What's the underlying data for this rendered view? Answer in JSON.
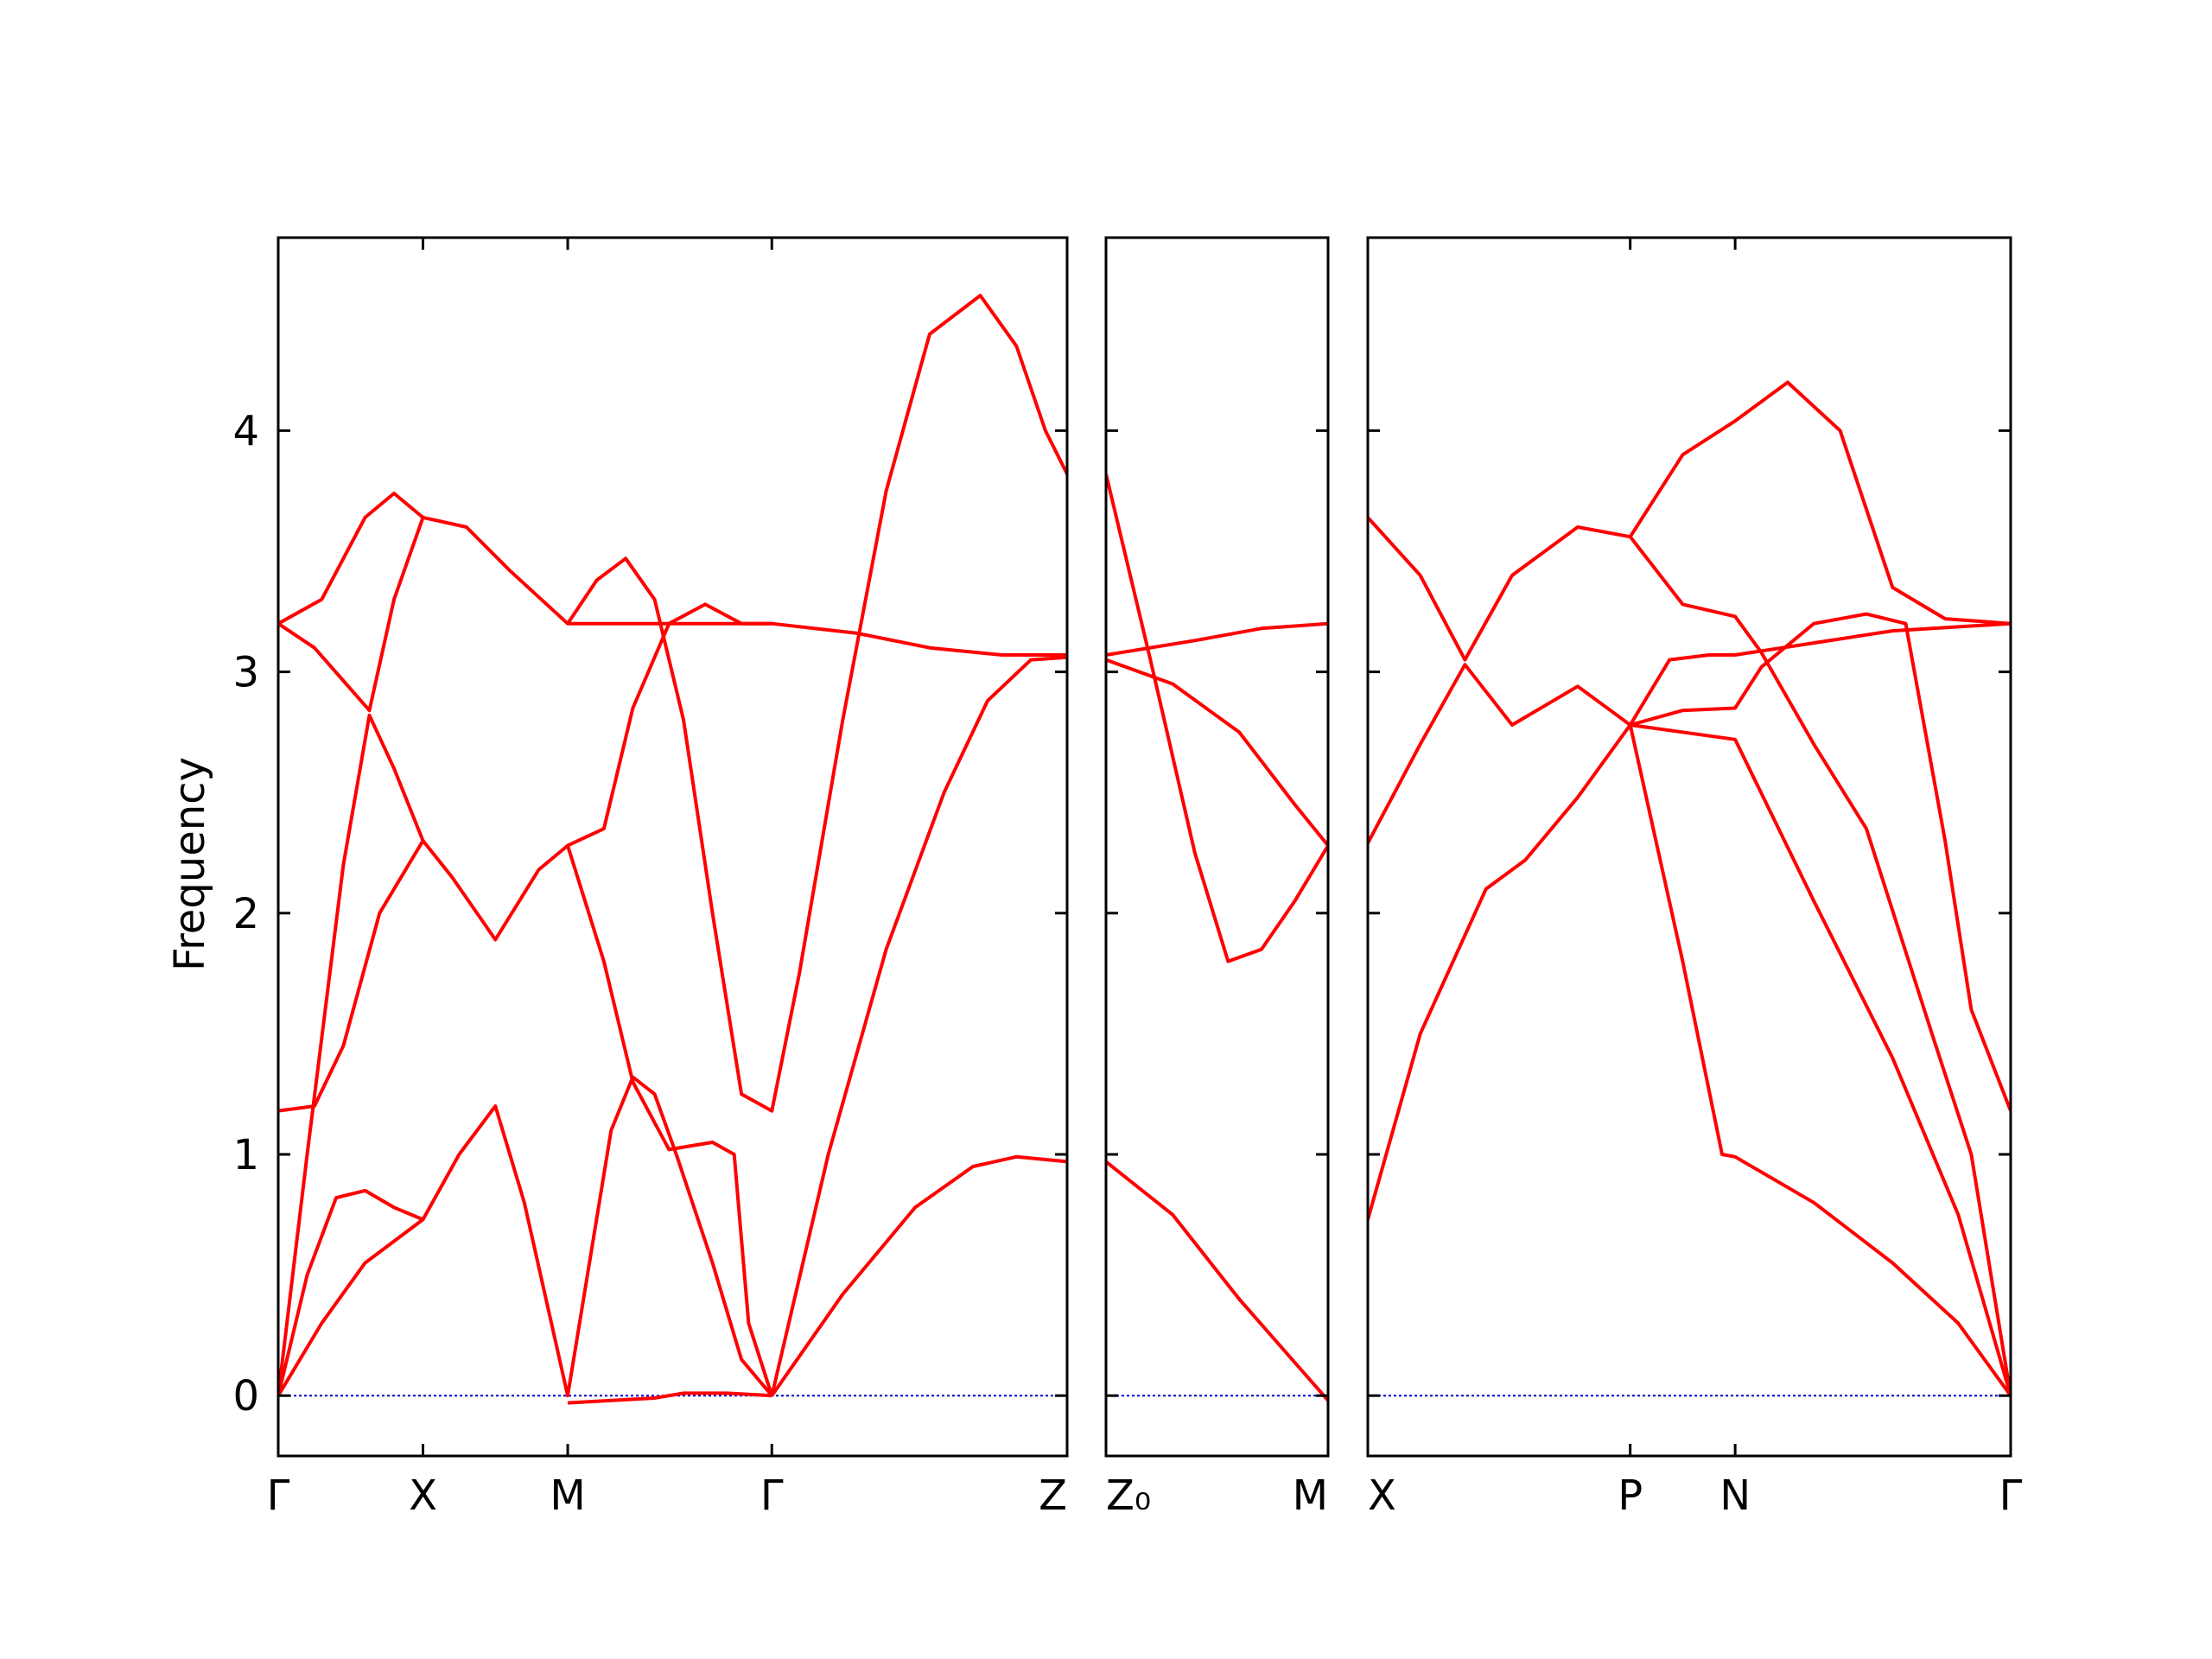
{
  "chart_data": {
    "type": "line",
    "ylabel": "Frequency",
    "ylim": [
      -0.25,
      4.8
    ],
    "yticks": [
      "0",
      "1",
      "2",
      "3",
      "4"
    ],
    "colors": {
      "bands": "#ff0000",
      "zero_line": "#0000cc",
      "axes": "#000000"
    },
    "panels": [
      {
        "labels": [
          "Γ",
          "X",
          "M",
          "Γ",
          "Z"
        ],
        "ticks": [
          0,
          1,
          2,
          3.41,
          5.45
        ],
        "bands": [
          [
            [
              0,
              0
            ],
            [
              0.3,
              0.3
            ],
            [
              0.6,
              0.55
            ],
            [
              1,
              0.73
            ],
            [
              1.25,
              1.0
            ],
            [
              1.5,
              1.2
            ],
            [
              1.7,
              0.8
            ],
            [
              2,
              0
            ],
            [
              2.3,
              1.1
            ],
            [
              2.45,
              1.32
            ],
            [
              2.6,
              1.25
            ],
            [
              2.75,
              1.0
            ],
            [
              3.0,
              0.55
            ],
            [
              3.2,
              0.15
            ],
            [
              3.41,
              0
            ]
          ],
          [
            [
              0,
              0
            ],
            [
              0.2,
              0.5
            ],
            [
              0.4,
              0.82
            ],
            [
              0.6,
              0.85
            ],
            [
              0.8,
              0.78
            ],
            [
              1,
              0.73
            ]
          ],
          [
            [
              0,
              1.18
            ],
            [
              0.25,
              1.2
            ],
            [
              0.45,
              1.45
            ],
            [
              0.7,
              2.0
            ],
            [
              1,
              2.3
            ],
            [
              1.2,
              2.15
            ],
            [
              1.5,
              1.89
            ],
            [
              1.8,
              2.18
            ],
            [
              2,
              2.28
            ],
            [
              2.25,
              1.8
            ],
            [
              2.45,
              1.3
            ],
            [
              2.7,
              1.02
            ],
            [
              3.0,
              1.05
            ],
            [
              3.15,
              1.0
            ],
            [
              3.25,
              0.3
            ],
            [
              3.41,
              0
            ]
          ],
          [
            [
              0,
              0
            ],
            [
              0.2,
              1.0
            ],
            [
              0.45,
              2.2
            ],
            [
              0.63,
              2.82
            ],
            [
              0.8,
              2.6
            ],
            [
              1,
              2.3
            ]
          ],
          [
            [
              0,
              3.2
            ],
            [
              0.25,
              3.1
            ],
            [
              0.63,
              2.84
            ],
            [
              0.8,
              3.3
            ],
            [
              1,
              3.64
            ],
            [
              1.3,
              3.6
            ],
            [
              1.6,
              3.42
            ],
            [
              2,
              3.2
            ],
            [
              2.2,
              3.38
            ],
            [
              2.4,
              3.47
            ],
            [
              2.6,
              3.3
            ],
            [
              2.8,
              2.8
            ],
            [
              3.0,
              2.0
            ],
            [
              3.2,
              1.25
            ],
            [
              3.41,
              1.18
            ],
            [
              3.6,
              1.75
            ],
            [
              3.9,
              2.8
            ],
            [
              4.2,
              3.75
            ],
            [
              4.5,
              4.4
            ],
            [
              4.85,
              4.56
            ],
            [
              5.1,
              4.35
            ],
            [
              5.3,
              4.0
            ],
            [
              5.45,
              3.82
            ]
          ],
          [
            [
              0,
              3.2
            ],
            [
              0.3,
              3.3
            ],
            [
              0.6,
              3.64
            ],
            [
              0.8,
              3.74
            ],
            [
              1,
              3.64
            ]
          ],
          [
            [
              2,
              3.2
            ],
            [
              2.4,
              3.2
            ],
            [
              2.8,
              3.2
            ],
            [
              3.41,
              3.2
            ],
            [
              4.0,
              3.16
            ],
            [
              4.5,
              3.1
            ],
            [
              5.0,
              3.07
            ],
            [
              5.45,
              3.07
            ]
          ],
          [
            [
              2,
              2.28
            ],
            [
              2.25,
              2.35
            ],
            [
              2.45,
              2.85
            ],
            [
              2.7,
              3.2
            ],
            [
              2.95,
              3.28
            ],
            [
              3.2,
              3.2
            ],
            [
              3.41,
              3.2
            ]
          ],
          [
            [
              3.41,
              0
            ],
            [
              3.8,
              1.0
            ],
            [
              4.2,
              1.85
            ],
            [
              4.6,
              2.5
            ],
            [
              4.9,
              2.88
            ],
            [
              5.2,
              3.05
            ],
            [
              5.45,
              3.06
            ]
          ],
          [
            [
              3.41,
              0
            ],
            [
              3.9,
              0.42
            ],
            [
              4.4,
              0.78
            ],
            [
              4.8,
              0.95
            ],
            [
              5.1,
              0.99
            ],
            [
              5.45,
              0.97
            ]
          ],
          [
            [
              2,
              -0.03
            ],
            [
              2.6,
              -0.01
            ],
            [
              2.8,
              0.01
            ],
            [
              3.1,
              0.01
            ],
            [
              3.41,
              0
            ]
          ]
        ]
      },
      {
        "labels": [
          "Z₀",
          "M"
        ],
        "ticks": [
          0,
          1
        ],
        "bands": [
          [
            [
              0,
              0.97
            ],
            [
              0.3,
              0.75
            ],
            [
              0.6,
              0.4
            ],
            [
              1,
              -0.02
            ]
          ],
          [
            [
              0,
              3.82
            ],
            [
              0.2,
              3.05
            ],
            [
              0.4,
              2.25
            ],
            [
              0.55,
              1.8
            ],
            [
              0.7,
              1.85
            ],
            [
              0.85,
              2.05
            ],
            [
              1,
              2.28
            ]
          ],
          [
            [
              0,
              3.05
            ],
            [
              0.3,
              2.95
            ],
            [
              0.6,
              2.75
            ],
            [
              0.85,
              2.45
            ],
            [
              1,
              2.28
            ]
          ],
          [
            [
              0,
              3.07
            ],
            [
              0.4,
              3.13
            ],
            [
              0.7,
              3.18
            ],
            [
              1,
              3.2
            ]
          ]
        ]
      },
      {
        "labels": [
          "X",
          "P",
          "N",
          "Γ"
        ],
        "ticks": [
          0,
          1,
          1.4,
          2.45
        ],
        "bands": [
          [
            [
              0,
              0.73
            ],
            [
              0.2,
              1.5
            ],
            [
              0.45,
              2.1
            ],
            [
              0.6,
              2.22
            ],
            [
              0.8,
              2.48
            ],
            [
              1,
              2.78
            ],
            [
              1.2,
              1.8
            ],
            [
              1.35,
              1.0
            ],
            [
              1.4,
              0.99
            ],
            [
              1.7,
              0.8
            ],
            [
              2.0,
              0.55
            ],
            [
              2.25,
              0.3
            ],
            [
              2.45,
              0
            ]
          ],
          [
            [
              0,
              2.29
            ],
            [
              0.2,
              2.7
            ],
            [
              0.37,
              3.03
            ],
            [
              0.55,
              2.78
            ],
            [
              0.8,
              2.94
            ],
            [
              1,
              2.78
            ],
            [
              1.4,
              2.72
            ],
            [
              1.7,
              2.05
            ],
            [
              2.0,
              1.4
            ],
            [
              2.25,
              0.75
            ],
            [
              2.45,
              0
            ]
          ],
          [
            [
              0,
              3.64
            ],
            [
              0.2,
              3.4
            ],
            [
              0.37,
              3.05
            ],
            [
              0.55,
              3.4
            ],
            [
              0.8,
              3.6
            ],
            [
              1,
              3.56
            ],
            [
              1.2,
              3.28
            ],
            [
              1.4,
              3.23
            ],
            [
              1.5,
              3.08
            ],
            [
              1.7,
              2.7
            ],
            [
              1.9,
              2.35
            ],
            [
              2.15,
              1.5
            ],
            [
              2.3,
              1.0
            ],
            [
              2.45,
              0
            ]
          ],
          [
            [
              1,
              3.56
            ],
            [
              1.2,
              3.9
            ],
            [
              1.4,
              4.04
            ],
            [
              1.6,
              4.2
            ],
            [
              1.8,
              4.0
            ],
            [
              2.0,
              3.35
            ],
            [
              2.2,
              3.22
            ],
            [
              2.45,
              3.2
            ]
          ],
          [
            [
              1,
              2.78
            ],
            [
              1.15,
              3.05
            ],
            [
              1.3,
              3.07
            ],
            [
              1.4,
              3.07
            ],
            [
              1.7,
              3.12
            ],
            [
              2.0,
              3.17
            ],
            [
              2.45,
              3.2
            ]
          ],
          [
            [
              1,
              2.78
            ],
            [
              1.2,
              2.84
            ],
            [
              1.4,
              2.85
            ],
            [
              1.5,
              3.02
            ],
            [
              1.7,
              3.2
            ],
            [
              1.9,
              3.24
            ],
            [
              2.05,
              3.2
            ],
            [
              2.2,
              2.3
            ],
            [
              2.3,
              1.6
            ],
            [
              2.45,
              1.18
            ]
          ]
        ]
      }
    ]
  }
}
